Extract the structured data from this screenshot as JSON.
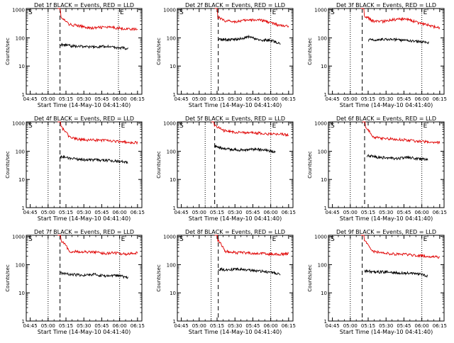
{
  "chart_data": {
    "type": "line",
    "series_legend": "BLACK = Events, RED = LLD",
    "ylabel": "Counts/sec",
    "xlabel": "Start Time (14-May-10 04:41:40)",
    "x_tick_labels": [
      "04:45",
      "05:00",
      "05:15",
      "05:30",
      "05:45",
      "06:00",
      "06:15"
    ],
    "y_tick_labels": [
      "1",
      "10",
      "100",
      "1000"
    ],
    "yscale": "log",
    "ylim": [
      1,
      1100
    ],
    "xlim_minutes_after_0441": [
      0,
      97
    ],
    "marker_S": "S",
    "marker_E": "E",
    "colors": {
      "events": "#000000",
      "lld": "#e00000"
    },
    "panels": [
      {
        "title": "Det 1f BLACK = Events, RED = LLD",
        "dotted_start": "05:00",
        "dashed": "05:10",
        "dotted_end": "05:59",
        "events_start": "05:10",
        "events_end": "06:07",
        "events_level": [
          58,
          52,
          50,
          48,
          50,
          46,
          42
        ],
        "lld_start": "05:08",
        "lld_end": "06:15",
        "lld_level": [
          600,
          300,
          260,
          220,
          240,
          230,
          210,
          200
        ]
      },
      {
        "title": "Det 2f BLACK = Events, RED = LLD",
        "dotted_start": "05:10",
        "dashed": "05:16",
        "dotted_end": "06:00",
        "events_start": "05:16",
        "events_end": "06:08",
        "events_level": [
          90,
          85,
          90,
          110,
          80,
          85,
          60
        ],
        "lld_start": "05:13",
        "lld_end": "06:15",
        "lld_level": [
          600,
          400,
          380,
          420,
          440,
          380,
          280,
          250
        ]
      },
      {
        "title": "Det 3f BLACK = Events, RED = LLD",
        "dotted_start": "05:00",
        "dashed": "05:10",
        "dotted_end": "06:00",
        "events_start": "05:15",
        "events_end": "06:06",
        "events_level": [
          85,
          88,
          90,
          85,
          80,
          75,
          65
        ],
        "lld_start": "05:09",
        "lld_end": "06:15",
        "lld_level": [
          700,
          400,
          380,
          450,
          470,
          350,
          280,
          220
        ]
      },
      {
        "title": "Det 4f BLACK = Events, RED = LLD",
        "dotted_start": "05:00",
        "dashed": "05:10",
        "dotted_end": "06:00",
        "events_start": "05:10",
        "events_end": "06:07",
        "events_level": [
          65,
          55,
          50,
          50,
          48,
          45,
          40
        ],
        "lld_start": "05:08",
        "lld_end": "06:15",
        "lld_level": [
          900,
          320,
          260,
          250,
          240,
          230,
          210,
          200
        ]
      },
      {
        "title": "Det 5f BLACK = Events, RED = LLD",
        "dotted_start": "05:05",
        "dashed": "05:13",
        "dotted_end": "06:00",
        "events_start": "05:13",
        "events_end": "06:04",
        "events_level": [
          150,
          120,
          115,
          110,
          120,
          110,
          95
        ],
        "lld_start": "05:10",
        "lld_end": "06:15",
        "lld_level": [
          1000,
          550,
          480,
          460,
          450,
          420,
          400,
          390
        ]
      },
      {
        "title": "Det 6f BLACK = Events, RED = LLD",
        "dotted_start": "05:00",
        "dashed": "05:12",
        "dotted_end": "06:00",
        "events_start": "05:14",
        "events_end": "06:05",
        "events_level": [
          70,
          62,
          58,
          55,
          60,
          55,
          50
        ],
        "lld_start": "05:10",
        "lld_end": "06:15",
        "lld_level": [
          900,
          320,
          280,
          270,
          250,
          230,
          210,
          200
        ]
      },
      {
        "title": "Det 7f BLACK = Events, RED = LLD",
        "dotted_start": "05:00",
        "dashed": "05:10",
        "dotted_end": "06:00",
        "events_start": "05:10",
        "events_end": "06:07",
        "events_level": [
          50,
          45,
          42,
          45,
          40,
          42,
          35
        ],
        "lld_start": "05:08",
        "lld_end": "06:15",
        "lld_level": [
          900,
          300,
          280,
          290,
          250,
          260,
          240,
          260
        ]
      },
      {
        "title": "Det 8f BLACK = Events, RED = LLD",
        "dotted_start": "05:10",
        "dashed": "05:16",
        "dotted_end": "06:00",
        "events_start": "05:16",
        "events_end": "06:08",
        "events_level": [
          70,
          65,
          70,
          65,
          60,
          55,
          45
        ],
        "lld_start": "05:13",
        "lld_end": "06:15",
        "lld_level": [
          900,
          300,
          270,
          260,
          250,
          240,
          230,
          250
        ]
      },
      {
        "title": "Det 9f BLACK = Events, RED = LLD",
        "dotted_start": "05:00",
        "dashed": "05:10",
        "dotted_end": "06:00",
        "events_start": "05:12",
        "events_end": "06:05",
        "events_level": [
          60,
          55,
          55,
          52,
          50,
          48,
          40
        ],
        "lld_start": "05:09",
        "lld_end": "06:15",
        "lld_level": [
          900,
          300,
          260,
          240,
          230,
          210,
          200,
          180
        ]
      }
    ]
  }
}
